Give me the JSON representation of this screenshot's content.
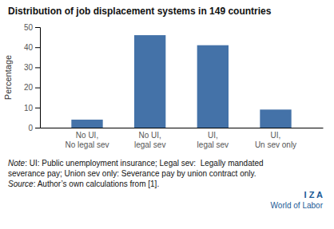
{
  "chart_data": {
    "type": "bar",
    "title": "Distribution of job displacement systems in 149 countries",
    "categories": [
      "No UI,\nNo legal sev",
      "No UI,\nlegal sev",
      "UI,\nlegal sev",
      "UI,\nUn sev only"
    ],
    "values": [
      4,
      46,
      41,
      9
    ],
    "color": "#4472a8",
    "ylabel": "Percentage",
    "ylim": [
      0,
      50
    ],
    "yticks": [
      0,
      10,
      20,
      30,
      40,
      50
    ],
    "grid": false,
    "annotations": [
      "Note",
      ": UI: Public unemployment insurance; Legal sev:  Legally mandated",
      "severance pay; Union sev only: Severance pay by union contract only.",
      "Source",
      ": Author’s own calculations from [1].",
      "I Z A",
      "World of Labor"
    ]
  }
}
